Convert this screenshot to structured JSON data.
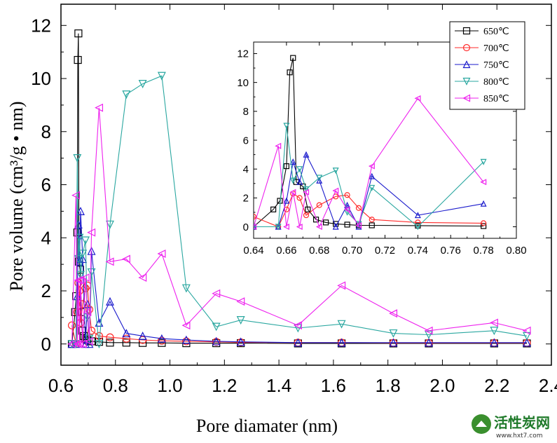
{
  "chart_data": {
    "type": "line",
    "xlabel": "Pore diamater (nm)",
    "ylabel": "Pore volume (cm³/g • nm)",
    "xlim": [
      0.6,
      2.4
    ],
    "ylim": [
      -0.8,
      12.8
    ],
    "xticks": [
      "0.6",
      "0.8",
      "1.0",
      "1.2",
      "1.4",
      "1.6",
      "1.8",
      "2.0",
      "2.2",
      "2.4"
    ],
    "xtick_values": [
      0.6,
      0.8,
      1.0,
      1.2,
      1.4,
      1.6,
      1.8,
      2.0,
      2.2,
      2.4
    ],
    "yticks": [
      "0",
      "2",
      "4",
      "6",
      "8",
      "10",
      "12"
    ],
    "ytick_values": [
      0,
      2,
      4,
      6,
      8,
      10,
      12
    ],
    "grid": false,
    "legend_position": "top-right",
    "series": [
      {
        "name": "650℃",
        "color": "#000000",
        "marker": "square",
        "x": [
          0.64,
          0.652,
          0.656,
          0.66,
          0.662,
          0.664,
          0.666,
          0.67,
          0.673,
          0.678,
          0.684,
          0.69,
          0.697,
          0.704,
          0.712,
          0.74,
          0.78,
          0.84,
          0.9,
          0.97,
          1.06,
          1.17,
          1.26,
          1.47,
          1.63,
          1.82,
          1.95,
          2.19,
          2.31
        ],
        "y": [
          0,
          1.2,
          1.8,
          4.2,
          10.7,
          11.7,
          3.1,
          2.8,
          1.2,
          0.5,
          0.3,
          0.2,
          0.15,
          0.1,
          0.1,
          0.08,
          0.05,
          0.05,
          0.04,
          0.04,
          0.03,
          0.03,
          0.03,
          0.02,
          0.02,
          0.02,
          0.02,
          0.02,
          0.02
        ]
      },
      {
        "name": "700℃",
        "color": "#ff2a2a",
        "marker": "circle",
        "x": [
          0.64,
          0.655,
          0.66,
          0.664,
          0.668,
          0.672,
          0.68,
          0.69,
          0.697,
          0.704,
          0.712,
          0.74,
          0.78,
          0.84,
          0.9,
          0.97,
          1.06,
          1.17,
          1.26,
          1.47,
          1.63,
          1.82,
          1.95,
          2.19,
          2.31
        ],
        "y": [
          0.7,
          0,
          1.2,
          2.3,
          2.0,
          0.8,
          1.5,
          2.1,
          2.2,
          1.3,
          0.5,
          0.3,
          0.25,
          0.2,
          0.15,
          0.12,
          0.1,
          0.08,
          0.06,
          0.05,
          0.05,
          0.04,
          0.04,
          0.04,
          0.04
        ]
      },
      {
        "name": "750℃",
        "color": "#1a1acc",
        "marker": "triangle-up",
        "x": [
          0.64,
          0.655,
          0.66,
          0.664,
          0.668,
          0.672,
          0.68,
          0.69,
          0.697,
          0.704,
          0.712,
          0.74,
          0.78,
          0.84,
          0.9,
          0.97,
          1.06,
          1.17,
          1.26,
          1.47,
          1.63,
          1.82,
          1.95,
          2.19,
          2.31
        ],
        "y": [
          0,
          0,
          1.8,
          4.5,
          3.1,
          5.0,
          3.2,
          0,
          1.5,
          0,
          3.5,
          0.8,
          1.6,
          0.4,
          0.3,
          0.2,
          0.15,
          0.1,
          0.08,
          0.05,
          0.05,
          0.05,
          0.05,
          0.05,
          0.05
        ]
      },
      {
        "name": "800℃",
        "color": "#2aa7a0",
        "marker": "triangle-down",
        "x": [
          0.64,
          0.655,
          0.66,
          0.664,
          0.668,
          0.672,
          0.68,
          0.69,
          0.697,
          0.704,
          0.712,
          0.74,
          0.78,
          0.84,
          0.9,
          0.97,
          1.06,
          1.17,
          1.26,
          1.47,
          1.63,
          1.82,
          1.95,
          2.19,
          2.31
        ],
        "y": [
          0,
          0,
          7.0,
          3.2,
          4.0,
          2.6,
          3.4,
          3.9,
          1.0,
          0.2,
          2.7,
          0,
          4.5,
          9.4,
          9.8,
          10.1,
          2.1,
          0.65,
          0.9,
          0.6,
          0.75,
          0.4,
          0.35,
          0.5,
          0.3
        ]
      },
      {
        "name": "850℃",
        "color": "#ee22ee",
        "marker": "triangle-left",
        "x": [
          0.64,
          0.655,
          0.66,
          0.664,
          0.668,
          0.672,
          0.68,
          0.69,
          0.697,
          0.704,
          0.712,
          0.74,
          0.78,
          0.84,
          0.9,
          0.97,
          1.06,
          1.17,
          1.26,
          1.47,
          1.63,
          1.82,
          1.95,
          2.19,
          2.31
        ],
        "y": [
          0,
          5.6,
          0,
          2.4,
          0,
          2.4,
          0,
          2.5,
          1.2,
          0.1,
          4.2,
          8.9,
          3.1,
          3.2,
          2.5,
          3.4,
          0.7,
          1.9,
          1.6,
          0.7,
          2.2,
          1.15,
          0.5,
          0.8,
          0.5
        ]
      }
    ],
    "inset": {
      "xlim": [
        0.64,
        0.8
      ],
      "ylim": [
        -0.8,
        12.8
      ],
      "xticks": [
        "0.64",
        "0.66",
        "0.68",
        "0.70",
        "0.72",
        "0.74",
        "0.76",
        "0.78",
        "0.80"
      ],
      "xtick_values": [
        0.64,
        0.66,
        0.68,
        0.7,
        0.72,
        0.74,
        0.76,
        0.78,
        0.8
      ],
      "yticks": [
        "0",
        "2",
        "4",
        "6",
        "8",
        "10",
        "12"
      ],
      "ytick_values": [
        0,
        2,
        4,
        6,
        8,
        10,
        12
      ]
    }
  },
  "watermark": {
    "brand": "活性炭网",
    "url": "www.hxt7.com"
  }
}
